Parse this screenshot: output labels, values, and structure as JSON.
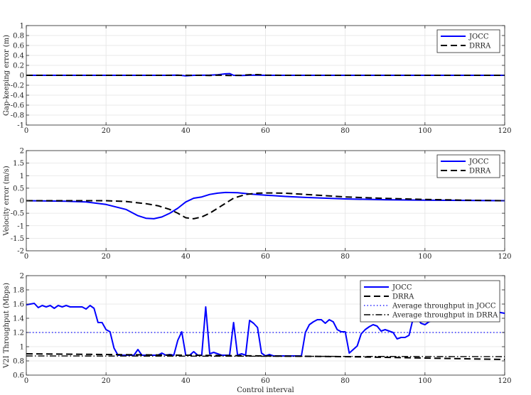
{
  "chart_data": [
    {
      "type": "line",
      "ylabel": "Gap-keeping error (m)",
      "xlabel": "",
      "xlim": [
        0,
        120
      ],
      "ylim": [
        -1,
        1
      ],
      "xticks": [
        0,
        20,
        40,
        60,
        80,
        100,
        120
      ],
      "yticks": [
        -1,
        -0.8,
        -0.6,
        -0.4,
        -0.2,
        0,
        0.2,
        0.4,
        0.6,
        0.8,
        1
      ],
      "ytick_labels": [
        "-1",
        "-0.8",
        "-0.6",
        "-0.4",
        "-0.2",
        "0",
        "0.2",
        "0.4",
        "0.6",
        "0.8",
        "1"
      ],
      "grid": true,
      "legend_position": "top-right",
      "series": [
        {
          "name": "JOCC",
          "color": "#0000ff",
          "style": "solid",
          "points": [
            [
              0,
              0
            ],
            [
              35,
              0
            ],
            [
              38,
              0.005
            ],
            [
              40,
              -0.01
            ],
            [
              42,
              0.0
            ],
            [
              46,
              0.005
            ],
            [
              48,
              0.01
            ],
            [
              50,
              0.03
            ],
            [
              51,
              0.035
            ],
            [
              52,
              0.0
            ],
            [
              54,
              -0.005
            ],
            [
              57,
              0.005
            ],
            [
              60,
              0.0
            ],
            [
              62,
              0.0
            ],
            [
              120,
              0
            ]
          ]
        },
        {
          "name": "DRRA",
          "color": "#000000",
          "style": "dashed",
          "points": [
            [
              0,
              0
            ],
            [
              44,
              0
            ],
            [
              46,
              -0.005
            ],
            [
              48,
              0.005
            ],
            [
              51,
              -0.005
            ],
            [
              54,
              0.0
            ],
            [
              56,
              0.01
            ],
            [
              58,
              0.015
            ],
            [
              60,
              0.005
            ],
            [
              64,
              0.0
            ],
            [
              120,
              0
            ]
          ]
        }
      ]
    },
    {
      "type": "line",
      "ylabel": "Velocity error (m/s)",
      "xlabel": "",
      "xlim": [
        0,
        120
      ],
      "ylim": [
        -2,
        2
      ],
      "xticks": [
        0,
        20,
        40,
        60,
        80,
        100,
        120
      ],
      "yticks": [
        -2,
        -1.5,
        -1,
        -0.5,
        0,
        0.5,
        1,
        1.5,
        2
      ],
      "ytick_labels": [
        "-2",
        "-1.5",
        "-1",
        "-0.5",
        "0",
        "0.5",
        "1",
        "1.5",
        "2"
      ],
      "grid": true,
      "legend_position": "top-right",
      "series": [
        {
          "name": "JOCC",
          "color": "#0000ff",
          "style": "solid",
          "points": [
            [
              0,
              0
            ],
            [
              10,
              -0.02
            ],
            [
              15,
              -0.05
            ],
            [
              20,
              -0.15
            ],
            [
              25,
              -0.35
            ],
            [
              28,
              -0.6
            ],
            [
              30,
              -0.7
            ],
            [
              32,
              -0.72
            ],
            [
              34,
              -0.65
            ],
            [
              36,
              -0.5
            ],
            [
              38,
              -0.3
            ],
            [
              40,
              -0.05
            ],
            [
              42,
              0.1
            ],
            [
              44,
              0.15
            ],
            [
              46,
              0.25
            ],
            [
              48,
              0.3
            ],
            [
              50,
              0.33
            ],
            [
              53,
              0.32
            ],
            [
              56,
              0.27
            ],
            [
              60,
              0.22
            ],
            [
              65,
              0.17
            ],
            [
              70,
              0.13
            ],
            [
              80,
              0.07
            ],
            [
              90,
              0.04
            ],
            [
              100,
              0.02
            ],
            [
              110,
              0.01
            ],
            [
              120,
              0.0
            ]
          ]
        },
        {
          "name": "DRRA",
          "color": "#000000",
          "style": "dashed",
          "points": [
            [
              0,
              0
            ],
            [
              20,
              0
            ],
            [
              25,
              -0.03
            ],
            [
              30,
              -0.12
            ],
            [
              33,
              -0.2
            ],
            [
              36,
              -0.35
            ],
            [
              38,
              -0.5
            ],
            [
              40,
              -0.68
            ],
            [
              42,
              -0.72
            ],
            [
              44,
              -0.65
            ],
            [
              46,
              -0.5
            ],
            [
              48,
              -0.3
            ],
            [
              50,
              -0.1
            ],
            [
              52,
              0.1
            ],
            [
              55,
              0.25
            ],
            [
              58,
              0.3
            ],
            [
              61,
              0.31
            ],
            [
              65,
              0.3
            ],
            [
              70,
              0.25
            ],
            [
              75,
              0.2
            ],
            [
              80,
              0.15
            ],
            [
              90,
              0.09
            ],
            [
              100,
              0.05
            ],
            [
              110,
              0.02
            ],
            [
              120,
              0.0
            ]
          ]
        }
      ]
    },
    {
      "type": "line",
      "ylabel": "V2I Throughput (Mbps)",
      "xlabel": "Control interval",
      "xlim": [
        0,
        120
      ],
      "ylim": [
        0.6,
        2
      ],
      "xticks": [
        0,
        20,
        40,
        60,
        80,
        100,
        120
      ],
      "yticks": [
        0.6,
        0.8,
        1.0,
        1.2,
        1.4,
        1.6,
        1.8,
        2.0
      ],
      "ytick_labels": [
        "0.6",
        "0.8",
        "1",
        "1.2",
        "1.4",
        "1.6",
        "1.8",
        "2"
      ],
      "grid": true,
      "legend_position": "top-right",
      "series": [
        {
          "name": "JOCC",
          "color": "#0000ff",
          "style": "solid",
          "points": [
            [
              0,
              1.59
            ],
            [
              2,
              1.61
            ],
            [
              3,
              1.55
            ],
            [
              4,
              1.58
            ],
            [
              5,
              1.56
            ],
            [
              6,
              1.58
            ],
            [
              7,
              1.54
            ],
            [
              8,
              1.58
            ],
            [
              9,
              1.56
            ],
            [
              10,
              1.58
            ],
            [
              11,
              1.56
            ],
            [
              12,
              1.56
            ],
            [
              14,
              1.56
            ],
            [
              15,
              1.53
            ],
            [
              16,
              1.58
            ],
            [
              17,
              1.54
            ],
            [
              18,
              1.34
            ],
            [
              19,
              1.34
            ],
            [
              20,
              1.24
            ],
            [
              21,
              1.21
            ],
            [
              22,
              0.98
            ],
            [
              23,
              0.88
            ],
            [
              27,
              0.88
            ],
            [
              28,
              0.96
            ],
            [
              29,
              0.88
            ],
            [
              33,
              0.88
            ],
            [
              34,
              0.91
            ],
            [
              35,
              0.88
            ],
            [
              36,
              0.89
            ],
            [
              37,
              0.88
            ],
            [
              38,
              1.09
            ],
            [
              39,
              1.21
            ],
            [
              40,
              0.88
            ],
            [
              41,
              0.88
            ],
            [
              42,
              0.93
            ],
            [
              43,
              0.88
            ],
            [
              44,
              0.88
            ],
            [
              45,
              1.56
            ],
            [
              46,
              0.9
            ],
            [
              47,
              0.92
            ],
            [
              48,
              0.9
            ],
            [
              49,
              0.88
            ],
            [
              51,
              0.88
            ],
            [
              52,
              1.34
            ],
            [
              53,
              0.88
            ],
            [
              54,
              0.9
            ],
            [
              55,
              0.88
            ],
            [
              56,
              1.37
            ],
            [
              57,
              1.33
            ],
            [
              58,
              1.27
            ],
            [
              59,
              0.91
            ],
            [
              60,
              0.87
            ],
            [
              61,
              0.89
            ],
            [
              62,
              0.87
            ],
            [
              69,
              0.87
            ],
            [
              70,
              1.2
            ],
            [
              71,
              1.31
            ],
            [
              72,
              1.35
            ],
            [
              73,
              1.38
            ],
            [
              74,
              1.38
            ],
            [
              75,
              1.33
            ],
            [
              76,
              1.38
            ],
            [
              77,
              1.35
            ],
            [
              78,
              1.24
            ],
            [
              79,
              1.21
            ],
            [
              80,
              1.21
            ],
            [
              81,
              0.91
            ],
            [
              82,
              0.96
            ],
            [
              83,
              1.01
            ],
            [
              84,
              1.18
            ],
            [
              85,
              1.24
            ],
            [
              86,
              1.28
            ],
            [
              87,
              1.31
            ],
            [
              88,
              1.29
            ],
            [
              89,
              1.22
            ],
            [
              90,
              1.24
            ],
            [
              91,
              1.22
            ],
            [
              92,
              1.2
            ],
            [
              93,
              1.11
            ],
            [
              94,
              1.13
            ],
            [
              95,
              1.13
            ],
            [
              96,
              1.16
            ],
            [
              97,
              1.39
            ],
            [
              98,
              1.41
            ],
            [
              99,
              1.33
            ],
            [
              100,
              1.31
            ],
            [
              101,
              1.35
            ],
            [
              102,
              1.37
            ],
            [
              103,
              1.37
            ],
            [
              104,
              1.41
            ],
            [
              105,
              1.42
            ],
            [
              106,
              1.43
            ],
            [
              107,
              1.44
            ],
            [
              108,
              1.45
            ],
            [
              109,
              1.46
            ],
            [
              110,
              1.46
            ],
            [
              111,
              1.47
            ],
            [
              112,
              1.47
            ],
            [
              113,
              1.47
            ],
            [
              114,
              1.48
            ],
            [
              115,
              1.48
            ],
            [
              116,
              1.49
            ],
            [
              117,
              1.49
            ],
            [
              118,
              1.49
            ],
            [
              119,
              1.48
            ],
            [
              120,
              1.47
            ]
          ]
        },
        {
          "name": "DRRA",
          "color": "#000000",
          "style": "dashed",
          "points": [
            [
              0,
              0.9
            ],
            [
              20,
              0.89
            ],
            [
              40,
              0.88
            ],
            [
              60,
              0.87
            ],
            [
              80,
              0.86
            ],
            [
              100,
              0.84
            ],
            [
              120,
              0.82
            ]
          ]
        },
        {
          "name": "Average throughput in JOCC",
          "color": "#0000ff",
          "style": "dotted",
          "points": [
            [
              0,
              1.2
            ],
            [
              120,
              1.2
            ]
          ]
        },
        {
          "name": "Average throughput in DRRA",
          "color": "#000000",
          "style": "dashdot",
          "points": [
            [
              0,
              0.87
            ],
            [
              120,
              0.86
            ]
          ]
        }
      ]
    }
  ]
}
